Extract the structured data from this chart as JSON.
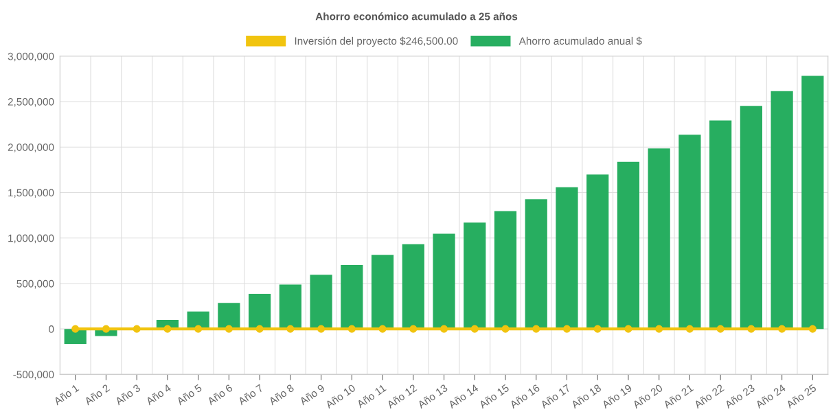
{
  "chart_data": {
    "type": "bar",
    "title": "Ahorro económico acumulado a 25 años",
    "categories": [
      "Año 1",
      "Año 2",
      "Año 3",
      "Año 4",
      "Año 5",
      "Año 6",
      "Año 7",
      "Año 8",
      "Año 9",
      "Año 10",
      "Año 11",
      "Año 12",
      "Año 13",
      "Año 14",
      "Año 15",
      "Año 16",
      "Año 17",
      "Año 18",
      "Año 19",
      "Año 20",
      "Año 21",
      "Año 22",
      "Año 23",
      "Año 24",
      "Año 25"
    ],
    "series": [
      {
        "name": "Inversión del proyecto $246,500.00",
        "type": "line",
        "color": "#f1c40f",
        "marker": "circle",
        "values": [
          0,
          0,
          0,
          0,
          0,
          0,
          0,
          0,
          0,
          0,
          0,
          0,
          0,
          0,
          0,
          0,
          0,
          0,
          0,
          0,
          0,
          0,
          0,
          0,
          0
        ]
      },
      {
        "name": "Ahorro acumulado anual $",
        "type": "bar",
        "color": "#27ae60",
        "values": [
          -165000,
          -78000,
          0,
          99000,
          192000,
          287000,
          386000,
          488000,
          596000,
          704000,
          814000,
          931000,
          1047000,
          1169000,
          1296000,
          1426000,
          1559000,
          1698000,
          1837000,
          1985000,
          2136000,
          2293000,
          2453000,
          2615000,
          2784000
        ]
      }
    ],
    "ylim": [
      -500000,
      3000000
    ],
    "yticks": [
      {
        "value": -500000,
        "label": "-500,000"
      },
      0,
      {
        "value": 500000,
        "label": "500,000"
      },
      {
        "value": 1000000,
        "label": "1,000,000"
      },
      {
        "value": 1500000,
        "label": "1,500,000"
      },
      {
        "value": 2000000,
        "label": "2,000,000"
      },
      {
        "value": 2500000,
        "label": "2,500,000"
      },
      {
        "value": 3000000,
        "label": "3,000,000"
      }
    ],
    "grid": true,
    "legend": "top"
  }
}
